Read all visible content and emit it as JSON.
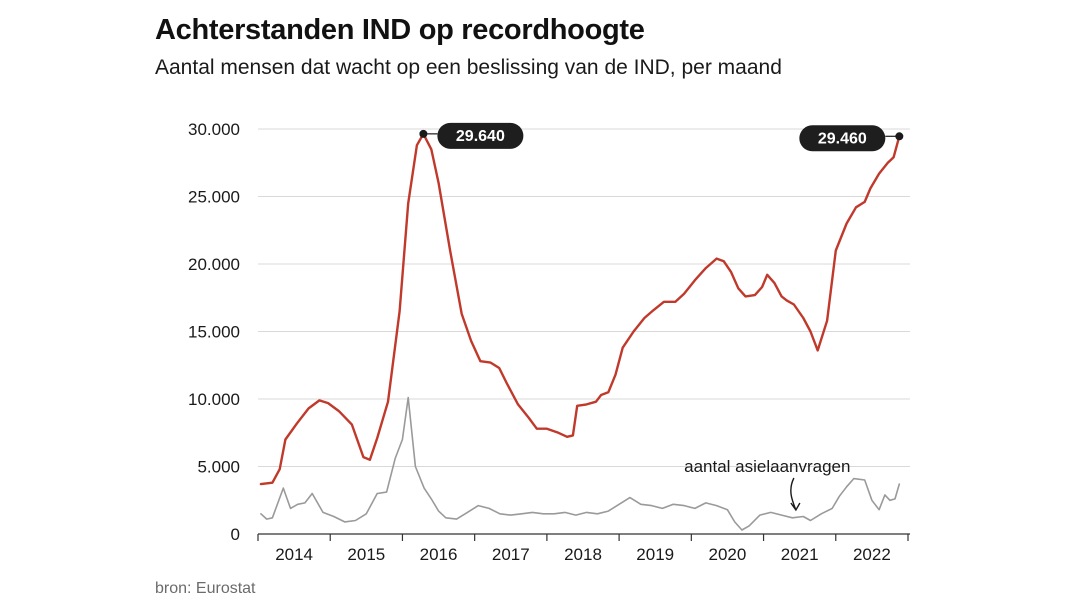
{
  "header": {
    "title": "Achterstanden IND op recordhoogte",
    "subtitle": "Aantal mensen dat wacht op een beslissing van de IND, per maand"
  },
  "footer": {
    "source": "bron: Eurostat"
  },
  "colors": {
    "backlog": "#c0392b",
    "asylum": "#9a9a9a",
    "grid": "#d9d9d9",
    "callout_bg": "#1e1e1e"
  },
  "chart_data": {
    "type": "line",
    "x_start": "2013-07",
    "x_end": "2022-06",
    "x_tick_labels": [
      "2014",
      "2015",
      "2016",
      "2017",
      "2018",
      "2019",
      "2020",
      "2021",
      "2022"
    ],
    "y_tick_labels": [
      "0",
      "5.000",
      "10.000",
      "15.000",
      "20.000",
      "25.000",
      "30.000"
    ],
    "ylim": [
      0,
      30000
    ],
    "grid": "horizontal",
    "series": [
      {
        "key": "backlog",
        "values": [
          [
            2013.54,
            3700
          ],
          [
            2013.7,
            3800
          ],
          [
            2013.8,
            4800
          ],
          [
            2013.88,
            7000
          ],
          [
            2014.04,
            8200
          ],
          [
            2014.2,
            9300
          ],
          [
            2014.35,
            9900
          ],
          [
            2014.47,
            9700
          ],
          [
            2014.62,
            9100
          ],
          [
            2014.8,
            8100
          ],
          [
            2014.96,
            5700
          ],
          [
            2015.05,
            5500
          ],
          [
            2015.15,
            7100
          ],
          [
            2015.3,
            9800
          ],
          [
            2015.46,
            16500
          ],
          [
            2015.58,
            24500
          ],
          [
            2015.7,
            28800
          ],
          [
            2015.79,
            29640
          ],
          [
            2015.9,
            28500
          ],
          [
            2016.0,
            26000
          ],
          [
            2016.16,
            21000
          ],
          [
            2016.32,
            16300
          ],
          [
            2016.45,
            14300
          ],
          [
            2016.58,
            12800
          ],
          [
            2016.72,
            12700
          ],
          [
            2016.84,
            12300
          ],
          [
            2016.95,
            11100
          ],
          [
            2017.1,
            9600
          ],
          [
            2017.25,
            8600
          ],
          [
            2017.36,
            7800
          ],
          [
            2017.5,
            7800
          ],
          [
            2017.66,
            7500
          ],
          [
            2017.78,
            7200
          ],
          [
            2017.86,
            7300
          ],
          [
            2017.92,
            9500
          ],
          [
            2018.05,
            9600
          ],
          [
            2018.18,
            9800
          ],
          [
            2018.25,
            10300
          ],
          [
            2018.35,
            10500
          ],
          [
            2018.45,
            11800
          ],
          [
            2018.55,
            13800
          ],
          [
            2018.7,
            15000
          ],
          [
            2018.85,
            16000
          ],
          [
            2018.98,
            16600
          ],
          [
            2019.12,
            17200
          ],
          [
            2019.28,
            17200
          ],
          [
            2019.4,
            17800
          ],
          [
            2019.55,
            18800
          ],
          [
            2019.7,
            19700
          ],
          [
            2019.85,
            20400
          ],
          [
            2019.95,
            20200
          ],
          [
            2020.05,
            19400
          ],
          [
            2020.15,
            18200
          ],
          [
            2020.25,
            17600
          ],
          [
            2020.38,
            17700
          ],
          [
            2020.48,
            18300
          ],
          [
            2020.55,
            19200
          ],
          [
            2020.65,
            18600
          ],
          [
            2020.75,
            17600
          ],
          [
            2020.82,
            17300
          ],
          [
            2020.92,
            17000
          ],
          [
            2021.05,
            16000
          ],
          [
            2021.15,
            15000
          ],
          [
            2021.25,
            13600
          ],
          [
            2021.38,
            15800
          ],
          [
            2021.5,
            21000
          ],
          [
            2021.65,
            23000
          ],
          [
            2021.78,
            24200
          ],
          [
            2021.9,
            24600
          ],
          [
            2021.98,
            25600
          ],
          [
            2022.1,
            26700
          ],
          [
            2022.22,
            27500
          ],
          [
            2022.3,
            27900
          ],
          [
            2022.38,
            29460
          ]
        ]
      },
      {
        "key": "asylum",
        "values": [
          [
            2013.54,
            1500
          ],
          [
            2013.62,
            1100
          ],
          [
            2013.7,
            1200
          ],
          [
            2013.85,
            3400
          ],
          [
            2013.95,
            1900
          ],
          [
            2014.05,
            2200
          ],
          [
            2014.15,
            2300
          ],
          [
            2014.25,
            3000
          ],
          [
            2014.4,
            1600
          ],
          [
            2014.55,
            1300
          ],
          [
            2014.7,
            900
          ],
          [
            2014.85,
            1000
          ],
          [
            2015.0,
            1500
          ],
          [
            2015.15,
            3000
          ],
          [
            2015.28,
            3100
          ],
          [
            2015.4,
            5600
          ],
          [
            2015.5,
            7000
          ],
          [
            2015.58,
            10100
          ],
          [
            2015.68,
            5000
          ],
          [
            2015.8,
            3400
          ],
          [
            2015.9,
            2600
          ],
          [
            2016.0,
            1700
          ],
          [
            2016.1,
            1200
          ],
          [
            2016.25,
            1100
          ],
          [
            2016.4,
            1600
          ],
          [
            2016.55,
            2100
          ],
          [
            2016.7,
            1900
          ],
          [
            2016.85,
            1500
          ],
          [
            2017.0,
            1400
          ],
          [
            2017.15,
            1500
          ],
          [
            2017.3,
            1600
          ],
          [
            2017.45,
            1500
          ],
          [
            2017.6,
            1500
          ],
          [
            2017.75,
            1600
          ],
          [
            2017.9,
            1400
          ],
          [
            2018.05,
            1600
          ],
          [
            2018.2,
            1500
          ],
          [
            2018.35,
            1700
          ],
          [
            2018.5,
            2200
          ],
          [
            2018.65,
            2700
          ],
          [
            2018.8,
            2200
          ],
          [
            2018.95,
            2100
          ],
          [
            2019.1,
            1900
          ],
          [
            2019.25,
            2200
          ],
          [
            2019.4,
            2100
          ],
          [
            2019.55,
            1900
          ],
          [
            2019.7,
            2300
          ],
          [
            2019.85,
            2100
          ],
          [
            2020.0,
            1800
          ],
          [
            2020.1,
            900
          ],
          [
            2020.2,
            300
          ],
          [
            2020.3,
            600
          ],
          [
            2020.45,
            1400
          ],
          [
            2020.6,
            1600
          ],
          [
            2020.75,
            1400
          ],
          [
            2020.9,
            1200
          ],
          [
            2021.05,
            1300
          ],
          [
            2021.15,
            1000
          ],
          [
            2021.3,
            1500
          ],
          [
            2021.45,
            1900
          ],
          [
            2021.55,
            2800
          ],
          [
            2021.65,
            3500
          ],
          [
            2021.75,
            4100
          ],
          [
            2021.9,
            4000
          ],
          [
            2022.0,
            2500
          ],
          [
            2022.1,
            1800
          ],
          [
            2022.18,
            2900
          ],
          [
            2022.25,
            2500
          ],
          [
            2022.32,
            2600
          ],
          [
            2022.38,
            3700
          ]
        ]
      }
    ],
    "callouts": [
      {
        "label": "29.640",
        "x": 2015.79,
        "y": 29640
      },
      {
        "label": "29.460",
        "x": 2022.38,
        "y": 29460
      }
    ],
    "annotation": "aantal asielaanvragen"
  }
}
